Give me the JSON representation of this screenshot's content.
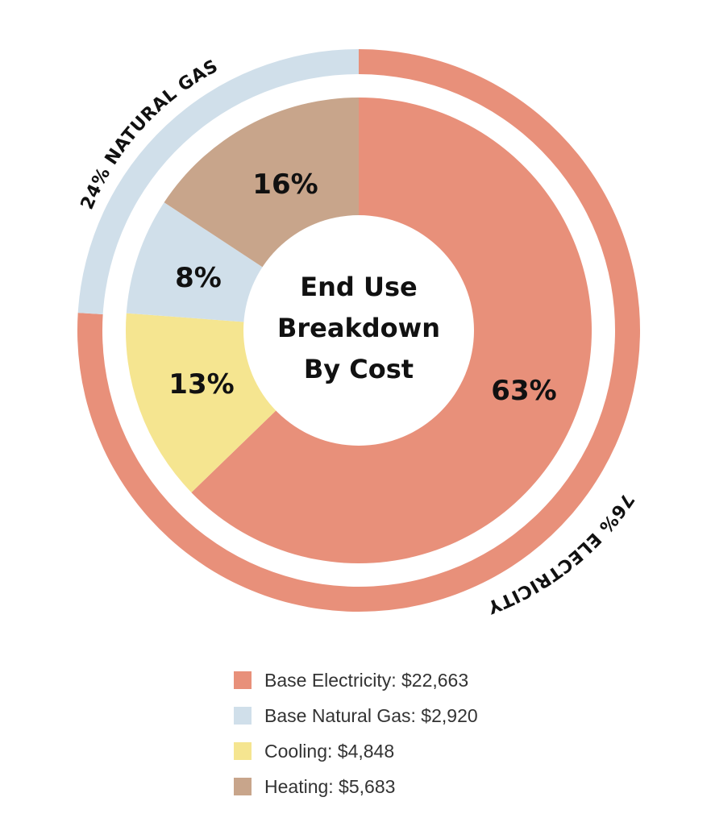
{
  "chart_data": {
    "type": "pie",
    "title": "End Use Breakdown By Cost",
    "title_lines": [
      "End Use",
      "Breakdown",
      "By Cost"
    ],
    "inner_ring": [
      {
        "name": "Base Electricity",
        "value": 22663,
        "percent_label": "63%",
        "color": "#E8907A"
      },
      {
        "name": "Cooling",
        "value": 4848,
        "percent_label": "13%",
        "color": "#F5E590"
      },
      {
        "name": "Base Natural Gas",
        "value": 2920,
        "percent_label": "8%",
        "color": "#D0DFEA"
      },
      {
        "name": "Heating",
        "value": 5683,
        "percent_label": "16%",
        "color": "#C8A58B"
      }
    ],
    "outer_ring": [
      {
        "name": "Electricity",
        "percent": 76,
        "label": "76% ELECTRICITY",
        "color": "#E8907A"
      },
      {
        "name": "Natural Gas",
        "percent": 24,
        "label": "24% NATURAL GAS",
        "color": "#D0DFEA"
      }
    ]
  },
  "legend": [
    {
      "label": "Base Electricity: $22,663",
      "color": "#E8907A"
    },
    {
      "label": "Base Natural Gas: $2,920",
      "color": "#D0DFEA"
    },
    {
      "label": "Cooling: $4,848",
      "color": "#F5E590"
    },
    {
      "label": "Heating: $5,683",
      "color": "#C8A58B"
    }
  ]
}
